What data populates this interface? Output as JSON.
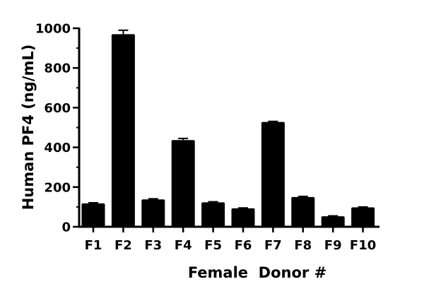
{
  "chart_data": {
    "type": "bar",
    "title": "",
    "xlabel": "Female  Donor #",
    "ylabel": "Human PF4 (ng/mL)",
    "categories": [
      "F1",
      "F2",
      "F3",
      "F4",
      "F5",
      "F6",
      "F7",
      "F8",
      "F9",
      "F10"
    ],
    "values": [
      118,
      970,
      138,
      437,
      123,
      93,
      528,
      150,
      53,
      98
    ],
    "errors": [
      3,
      20,
      3,
      8,
      3,
      2,
      3,
      3,
      2,
      2
    ],
    "ylim": [
      0,
      1000
    ],
    "yticks": [
      0,
      200,
      400,
      600,
      800,
      1000
    ],
    "yminor_ticks": [
      100,
      300,
      500,
      700,
      900
    ],
    "grid": false,
    "legend": null,
    "bar_color": "#000000",
    "axis_color": "#000000"
  }
}
